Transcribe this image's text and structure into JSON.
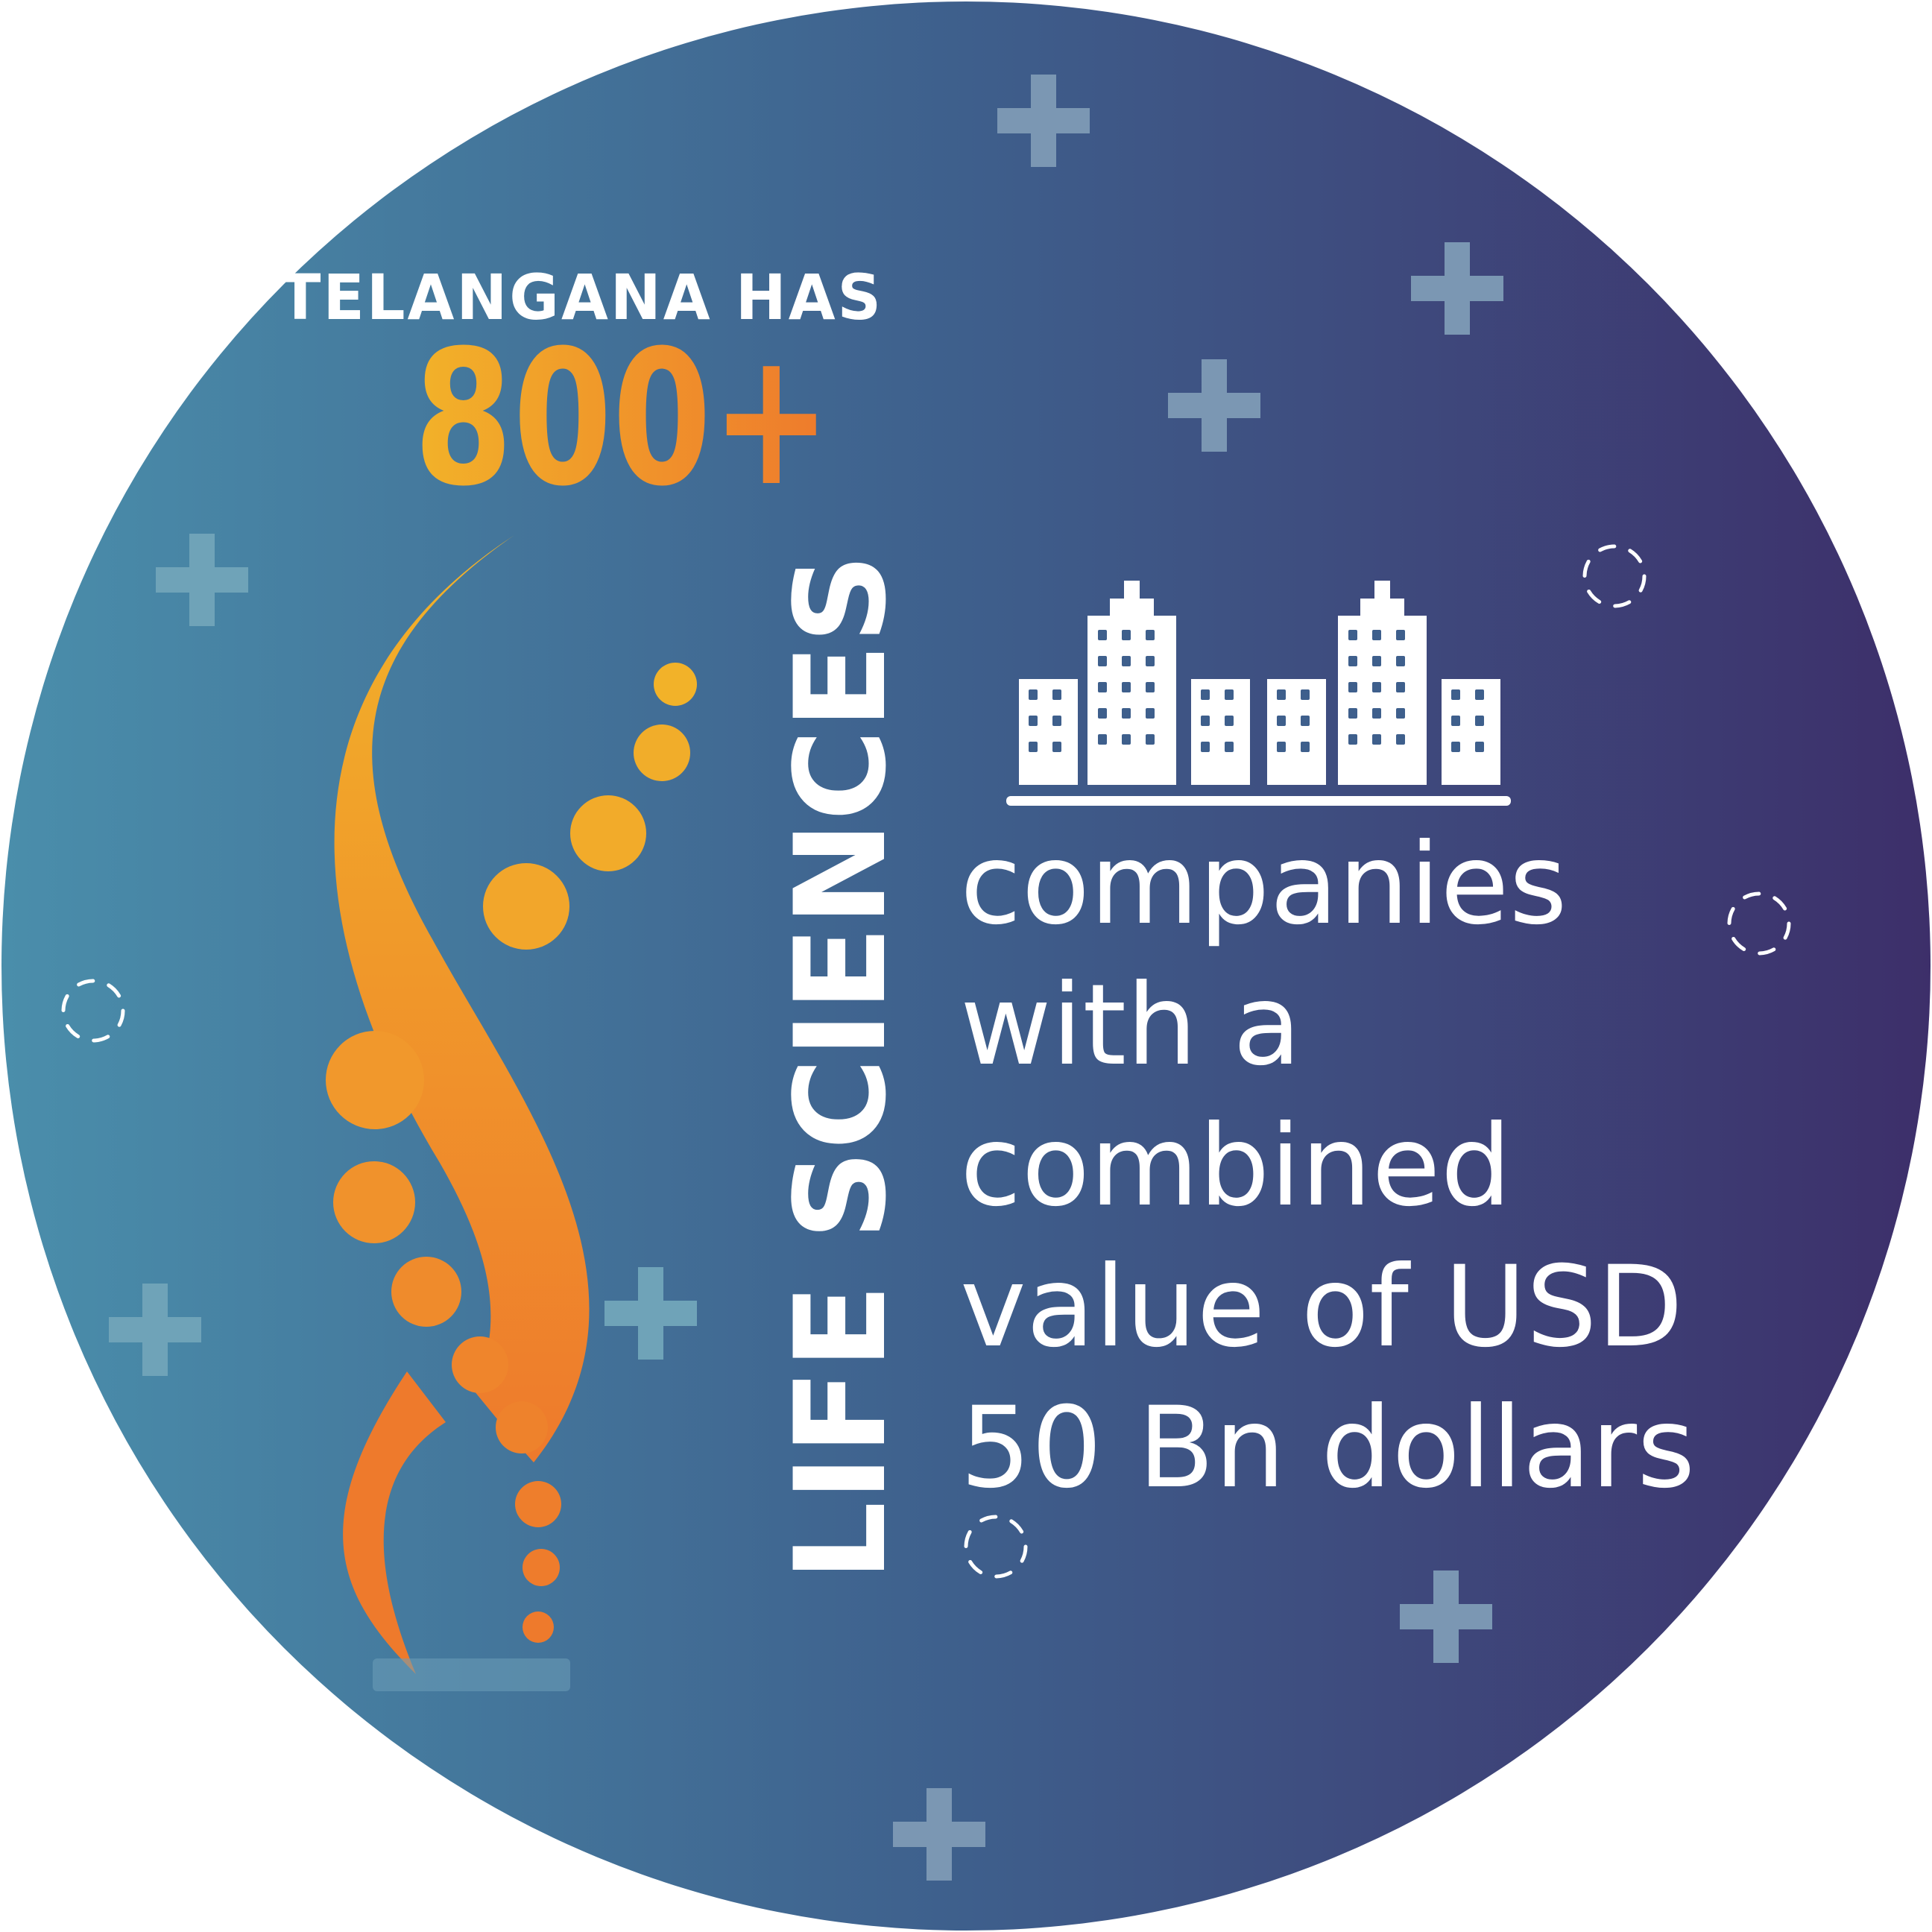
{
  "headline": {
    "prefix": "TELANGANA HAS",
    "number": "800+"
  },
  "vertical_label": "LIFE SCIENCES",
  "description_lines": [
    "companies",
    "with a",
    "combined",
    "value of USD",
    "50 Bn dollars"
  ],
  "icons": {
    "buildings": "city-buildings-icon",
    "plus": "plus-icon",
    "dashed_circle": "dashed-circle-icon",
    "logo": "life-sciences-swirl-logo"
  },
  "colors": {
    "bg_left": "#4B8DAA",
    "bg_right": "#3D2F6B",
    "orange": "#EE7A2C",
    "yellow": "#F2B229",
    "text": "#FFFFFF",
    "plus": "#7C98B4"
  }
}
